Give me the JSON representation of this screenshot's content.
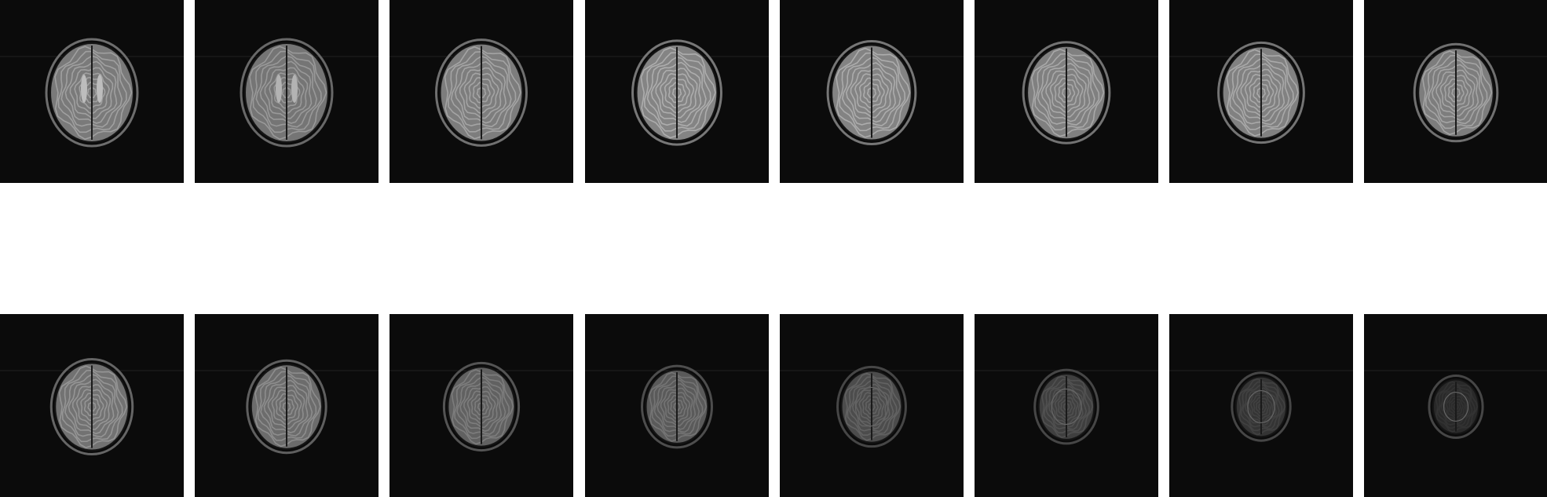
{
  "montage": {
    "rows": [
      {
        "name": "top-row",
        "slices": [
          {
            "brightness": 0.78,
            "scale": 1.0,
            "ventricles": true
          },
          {
            "brightness": 0.74,
            "scale": 1.0,
            "ventricles": true
          },
          {
            "brightness": 0.8,
            "scale": 0.99,
            "ventricles": false
          },
          {
            "brightness": 0.85,
            "scale": 0.97,
            "ventricles": false
          },
          {
            "brightness": 0.84,
            "scale": 0.96,
            "ventricles": false
          },
          {
            "brightness": 0.82,
            "scale": 0.94,
            "ventricles": false
          },
          {
            "brightness": 0.83,
            "scale": 0.93,
            "ventricles": false
          },
          {
            "brightness": 0.8,
            "scale": 0.9,
            "ventricles": false
          }
        ]
      },
      {
        "name": "bottom-row",
        "slices": [
          {
            "brightness": 0.72,
            "scale": 0.88,
            "ventricles": false
          },
          {
            "brightness": 0.68,
            "scale": 0.85,
            "ventricles": false
          },
          {
            "brightness": 0.6,
            "scale": 0.8,
            "ventricles": false
          },
          {
            "brightness": 0.55,
            "scale": 0.74,
            "ventricles": false
          },
          {
            "brightness": 0.45,
            "scale": 0.72,
            "ventricles": false
          },
          {
            "brightness": 0.36,
            "scale": 0.66,
            "ventricles": false
          },
          {
            "brightness": 0.28,
            "scale": 0.6,
            "ventricles": false
          },
          {
            "brightness": 0.2,
            "scale": 0.54,
            "ventricles": false
          }
        ]
      }
    ],
    "colors": {
      "background": "#ffffff",
      "tile": "#0b0b0b",
      "skull": "#9a9a9a",
      "tissue": "#d8d8d8"
    }
  }
}
